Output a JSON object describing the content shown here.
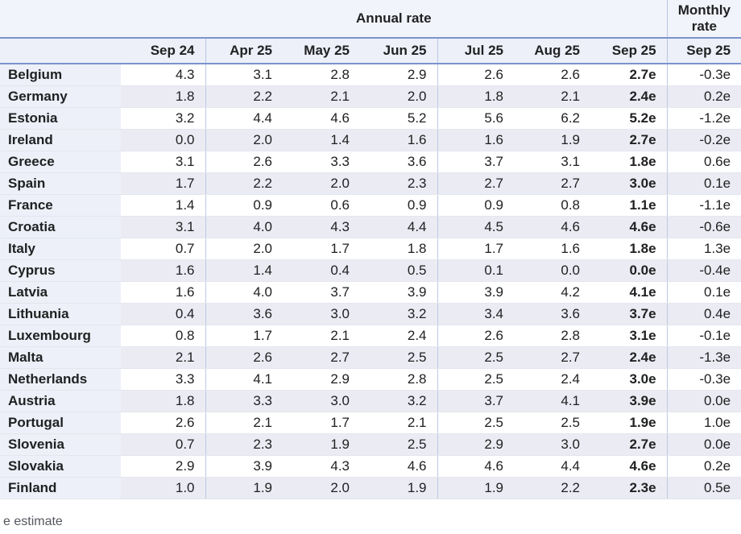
{
  "chart_data": {
    "type": "table",
    "group_headers": {
      "annual": "Annual rate",
      "monthly": "Monthly rate"
    },
    "columns": [
      "Sep 24",
      "Apr 25",
      "May 25",
      "Jun 25",
      "Jul 25",
      "Aug 25",
      "Sep 25",
      "Sep 25"
    ],
    "rows": [
      {
        "country": "Belgium",
        "values": [
          "4.3",
          "3.1",
          "2.8",
          "2.9",
          "2.6",
          "2.6",
          "2.7e",
          "-0.3e"
        ]
      },
      {
        "country": "Germany",
        "values": [
          "1.8",
          "2.2",
          "2.1",
          "2.0",
          "1.8",
          "2.1",
          "2.4e",
          "0.2e"
        ]
      },
      {
        "country": "Estonia",
        "values": [
          "3.2",
          "4.4",
          "4.6",
          "5.2",
          "5.6",
          "6.2",
          "5.2e",
          "-1.2e"
        ]
      },
      {
        "country": "Ireland",
        "values": [
          "0.0",
          "2.0",
          "1.4",
          "1.6",
          "1.6",
          "1.9",
          "2.7e",
          "-0.2e"
        ]
      },
      {
        "country": "Greece",
        "values": [
          "3.1",
          "2.6",
          "3.3",
          "3.6",
          "3.7",
          "3.1",
          "1.8e",
          "0.6e"
        ]
      },
      {
        "country": "Spain",
        "values": [
          "1.7",
          "2.2",
          "2.0",
          "2.3",
          "2.7",
          "2.7",
          "3.0e",
          "0.1e"
        ]
      },
      {
        "country": "France",
        "values": [
          "1.4",
          "0.9",
          "0.6",
          "0.9",
          "0.9",
          "0.8",
          "1.1e",
          "-1.1e"
        ]
      },
      {
        "country": "Croatia",
        "values": [
          "3.1",
          "4.0",
          "4.3",
          "4.4",
          "4.5",
          "4.6",
          "4.6e",
          "-0.6e"
        ]
      },
      {
        "country": "Italy",
        "values": [
          "0.7",
          "2.0",
          "1.7",
          "1.8",
          "1.7",
          "1.6",
          "1.8e",
          "1.3e"
        ]
      },
      {
        "country": "Cyprus",
        "values": [
          "1.6",
          "1.4",
          "0.4",
          "0.5",
          "0.1",
          "0.0",
          "0.0e",
          "-0.4e"
        ]
      },
      {
        "country": "Latvia",
        "values": [
          "1.6",
          "4.0",
          "3.7",
          "3.9",
          "3.9",
          "4.2",
          "4.1e",
          "0.1e"
        ]
      },
      {
        "country": "Lithuania",
        "values": [
          "0.4",
          "3.6",
          "3.0",
          "3.2",
          "3.4",
          "3.6",
          "3.7e",
          "0.4e"
        ]
      },
      {
        "country": "Luxembourg",
        "values": [
          "0.8",
          "1.7",
          "2.1",
          "2.4",
          "2.6",
          "2.8",
          "3.1e",
          "-0.1e"
        ]
      },
      {
        "country": "Malta",
        "values": [
          "2.1",
          "2.6",
          "2.7",
          "2.5",
          "2.5",
          "2.7",
          "2.4e",
          "-1.3e"
        ]
      },
      {
        "country": "Netherlands",
        "values": [
          "3.3",
          "4.1",
          "2.9",
          "2.8",
          "2.5",
          "2.4",
          "3.0e",
          "-0.3e"
        ]
      },
      {
        "country": "Austria",
        "values": [
          "1.8",
          "3.3",
          "3.0",
          "3.2",
          "3.7",
          "4.1",
          "3.9e",
          "0.0e"
        ]
      },
      {
        "country": "Portugal",
        "values": [
          "2.6",
          "2.1",
          "1.7",
          "2.1",
          "2.5",
          "2.5",
          "1.9e",
          "1.0e"
        ]
      },
      {
        "country": "Slovenia",
        "values": [
          "0.7",
          "2.3",
          "1.9",
          "2.5",
          "2.9",
          "3.0",
          "2.7e",
          "0.0e"
        ]
      },
      {
        "country": "Slovakia",
        "values": [
          "2.9",
          "3.9",
          "4.3",
          "4.6",
          "4.6",
          "4.4",
          "4.6e",
          "0.2e"
        ]
      },
      {
        "country": "Finland",
        "values": [
          "1.0",
          "1.9",
          "2.0",
          "1.9",
          "1.9",
          "2.2",
          "2.3e",
          "0.5e"
        ]
      }
    ],
    "layout_hints": {
      "bold_column_index": 6,
      "separator_value_indexes": [
        1,
        4,
        7
      ],
      "alternating_rows": true
    },
    "colors": {
      "rule_blue": "#7b94ce",
      "separator_blue": "#b7c5e4",
      "header_bg": "#edf0f8",
      "group_bg": "#f2f4fb",
      "alt_row_bg": "#ebecf3",
      "text": "#202122"
    }
  },
  "footnote": "e estimate"
}
